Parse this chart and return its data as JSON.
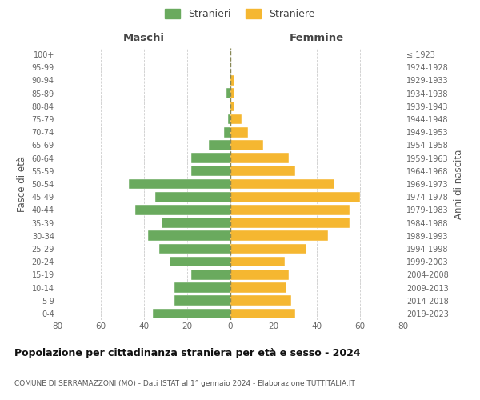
{
  "age_groups": [
    "0-4",
    "5-9",
    "10-14",
    "15-19",
    "20-24",
    "25-29",
    "30-34",
    "35-39",
    "40-44",
    "45-49",
    "50-54",
    "55-59",
    "60-64",
    "65-69",
    "70-74",
    "75-79",
    "80-84",
    "85-89",
    "90-94",
    "95-99",
    "100+"
  ],
  "birth_years": [
    "2019-2023",
    "2014-2018",
    "2009-2013",
    "2004-2008",
    "1999-2003",
    "1994-1998",
    "1989-1993",
    "1984-1988",
    "1979-1983",
    "1974-1978",
    "1969-1973",
    "1964-1968",
    "1959-1963",
    "1954-1958",
    "1949-1953",
    "1944-1948",
    "1939-1943",
    "1934-1938",
    "1929-1933",
    "1924-1928",
    "≤ 1923"
  ],
  "males": [
    36,
    26,
    26,
    18,
    28,
    33,
    38,
    32,
    44,
    35,
    47,
    18,
    18,
    10,
    3,
    1,
    0,
    2,
    0,
    0,
    0
  ],
  "females": [
    30,
    28,
    26,
    27,
    25,
    35,
    45,
    55,
    55,
    60,
    48,
    30,
    27,
    15,
    8,
    5,
    2,
    2,
    2,
    0,
    0
  ],
  "male_color": "#6aaa5e",
  "female_color": "#f5b731",
  "title": "Popolazione per cittadinanza straniera per età e sesso - 2024",
  "subtitle": "COMUNE DI SERRAMAZZONI (MO) - Dati ISTAT al 1° gennaio 2024 - Elaborazione TUTTITALIA.IT",
  "xlabel_left": "Maschi",
  "xlabel_right": "Femmine",
  "ylabel_left": "Fasce di età",
  "ylabel_right": "Anni di nascita",
  "xlim": 80,
  "legend_labels": [
    "Stranieri",
    "Straniere"
  ],
  "background_color": "#ffffff",
  "grid_color": "#cccccc",
  "center_line_color": "#888855"
}
